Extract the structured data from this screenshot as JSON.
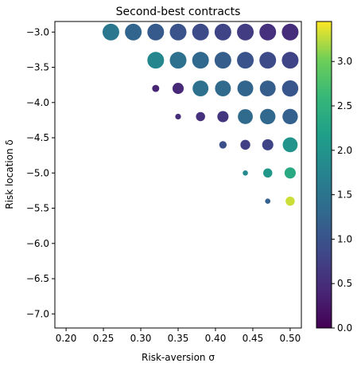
{
  "chart_data": {
    "type": "scatter",
    "title": "Second-best contracts",
    "xlabel": "Risk-aversion σ",
    "ylabel": "Risk location δ",
    "xlim": [
      0.185,
      0.515
    ],
    "ylim": [
      -7.2,
      -2.85
    ],
    "xticks": [
      0.2,
      0.25,
      0.3,
      0.35,
      0.4,
      0.45,
      0.5
    ],
    "xtick_labels": [
      "0.20",
      "0.25",
      "0.30",
      "0.35",
      "0.40",
      "0.45",
      "0.50"
    ],
    "yticks": [
      -3.0,
      -3.5,
      -4.0,
      -4.5,
      -5.0,
      -5.5,
      -6.0,
      -6.5,
      -7.0
    ],
    "ytick_labels": [
      "−3.0",
      "−3.5",
      "−4.0",
      "−4.5",
      "−5.0",
      "−5.5",
      "−6.0",
      "−6.5",
      "−7.0"
    ],
    "grid": false,
    "colorbar": {
      "colormap": "viridis",
      "range": [
        0.0,
        3.45
      ],
      "ticks": [
        0.0,
        0.5,
        1.0,
        1.5,
        2.0,
        2.5,
        3.0
      ],
      "tick_labels": [
        "0.0",
        "0.5",
        "1.0",
        "1.5",
        "2.0",
        "2.5",
        "3.0"
      ]
    },
    "point_size_note": "marker size and color vary per point",
    "points": [
      {
        "x": 0.26,
        "y": -3.0,
        "size": 1.0,
        "c": 1.55
      },
      {
        "x": 0.29,
        "y": -3.0,
        "size": 1.0,
        "c": 1.25
      },
      {
        "x": 0.32,
        "y": -3.0,
        "size": 1.0,
        "c": 1.1
      },
      {
        "x": 0.35,
        "y": -3.0,
        "size": 1.0,
        "c": 1.0
      },
      {
        "x": 0.38,
        "y": -3.0,
        "size": 1.0,
        "c": 0.9
      },
      {
        "x": 0.41,
        "y": -3.0,
        "size": 1.0,
        "c": 0.8
      },
      {
        "x": 0.44,
        "y": -3.0,
        "size": 1.0,
        "c": 0.7
      },
      {
        "x": 0.47,
        "y": -3.0,
        "size": 1.0,
        "c": 0.55
      },
      {
        "x": 0.5,
        "y": -3.0,
        "size": 1.0,
        "c": 0.5
      },
      {
        "x": 0.32,
        "y": -3.4,
        "size": 1.0,
        "c": 1.8
      },
      {
        "x": 0.35,
        "y": -3.4,
        "size": 1.0,
        "c": 1.45
      },
      {
        "x": 0.38,
        "y": -3.4,
        "size": 1.0,
        "c": 1.3
      },
      {
        "x": 0.41,
        "y": -3.4,
        "size": 1.0,
        "c": 1.15
      },
      {
        "x": 0.44,
        "y": -3.4,
        "size": 1.0,
        "c": 1.0
      },
      {
        "x": 0.47,
        "y": -3.4,
        "size": 1.0,
        "c": 0.9
      },
      {
        "x": 0.5,
        "y": -3.4,
        "size": 1.0,
        "c": 0.8
      },
      {
        "x": 0.32,
        "y": -3.8,
        "size": 0.18,
        "c": 0.4
      },
      {
        "x": 0.35,
        "y": -3.8,
        "size": 0.45,
        "c": 0.45
      },
      {
        "x": 0.38,
        "y": -3.8,
        "size": 0.9,
        "c": 1.45
      },
      {
        "x": 0.41,
        "y": -3.8,
        "size": 0.9,
        "c": 1.35
      },
      {
        "x": 0.44,
        "y": -3.8,
        "size": 0.9,
        "c": 1.25
      },
      {
        "x": 0.47,
        "y": -3.8,
        "size": 0.9,
        "c": 1.15
      },
      {
        "x": 0.5,
        "y": -3.8,
        "size": 0.95,
        "c": 1.05
      },
      {
        "x": 0.35,
        "y": -4.2,
        "size": 0.12,
        "c": 0.5
      },
      {
        "x": 0.38,
        "y": -4.2,
        "size": 0.3,
        "c": 0.55
      },
      {
        "x": 0.41,
        "y": -4.2,
        "size": 0.45,
        "c": 0.6
      },
      {
        "x": 0.44,
        "y": -4.2,
        "size": 0.8,
        "c": 1.35
      },
      {
        "x": 0.47,
        "y": -4.2,
        "size": 0.85,
        "c": 1.3
      },
      {
        "x": 0.5,
        "y": -4.2,
        "size": 0.85,
        "c": 1.2
      },
      {
        "x": 0.41,
        "y": -4.6,
        "size": 0.2,
        "c": 0.95
      },
      {
        "x": 0.44,
        "y": -4.6,
        "size": 0.35,
        "c": 0.75
      },
      {
        "x": 0.47,
        "y": -4.6,
        "size": 0.45,
        "c": 0.8
      },
      {
        "x": 0.5,
        "y": -4.6,
        "size": 0.8,
        "c": 2.0
      },
      {
        "x": 0.44,
        "y": -5.0,
        "size": 0.1,
        "c": 1.85
      },
      {
        "x": 0.47,
        "y": -5.0,
        "size": 0.3,
        "c": 2.05
      },
      {
        "x": 0.5,
        "y": -5.0,
        "size": 0.45,
        "c": 2.35
      },
      {
        "x": 0.47,
        "y": -5.4,
        "size": 0.1,
        "c": 1.2
      },
      {
        "x": 0.5,
        "y": -5.4,
        "size": 0.3,
        "c": 3.3
      }
    ]
  }
}
